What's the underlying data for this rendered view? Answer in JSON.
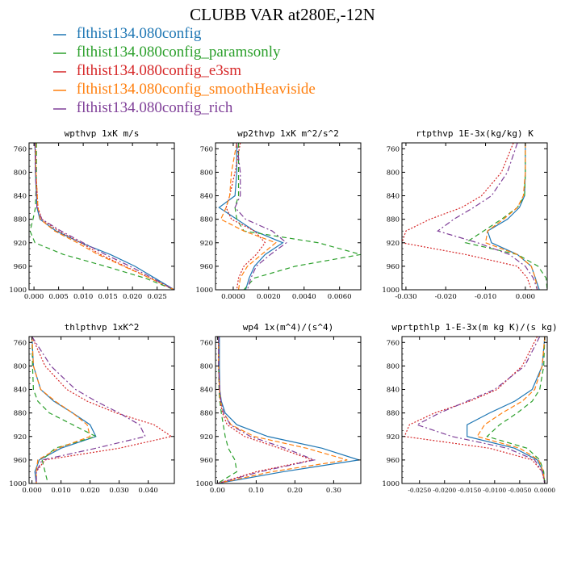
{
  "page": {
    "title": "CLUBB VAR at280E,-12N"
  },
  "legend": {
    "items": [
      {
        "label": "flthist134.080config",
        "color": "#1f77b4",
        "dash": "solid"
      },
      {
        "label": "flthist134.080config_paramsonly",
        "color": "#2ca02c",
        "dash": "6,4"
      },
      {
        "label": "flthist134.080config_e3sm",
        "color": "#d62728",
        "dash": "2,2"
      },
      {
        "label": "flthist134.080config_smoothHeaviside",
        "color": "#ff7f0e",
        "dash": "6,3"
      },
      {
        "label": "flthist134.080config_rich",
        "color": "#7f3f98",
        "dash": "7,3,2,3"
      }
    ]
  },
  "chart_data": [
    {
      "type": "line",
      "title": "wpthvp  1xK m/s",
      "xlim": [
        -0.001,
        0.0285
      ],
      "ylim": [
        750,
        1000
      ],
      "xticks": [
        0,
        0.005,
        0.01,
        0.015,
        0.02,
        0.025
      ],
      "xtick_labels": [
        "0.000",
        "0.005",
        "0.010",
        "0.015",
        "0.020",
        "0.025"
      ],
      "yticks": [
        760,
        800,
        840,
        880,
        920,
        960,
        1000
      ],
      "y": [
        750,
        800,
        860,
        880,
        900,
        920,
        940,
        960,
        980,
        1000
      ],
      "series": [
        {
          "x": [
            0.0002,
            0.0003,
            0.0006,
            0.0012,
            0.0045,
            0.0095,
            0.0155,
            0.0205,
            0.0245,
            0.0285
          ]
        },
        {
          "x": [
            0.0005,
            0.0005,
            0.0003,
            -0.0002,
            -0.0008,
            0.0002,
            0.006,
            0.0145,
            0.0225,
            0.0285
          ]
        },
        {
          "x": [
            0.0003,
            0.0004,
            0.0008,
            0.0016,
            0.005,
            0.0095,
            0.0135,
            0.0185,
            0.0235,
            0.0285
          ]
        },
        {
          "x": [
            0.0003,
            0.0004,
            0.0008,
            0.0013,
            0.0042,
            0.0088,
            0.013,
            0.0182,
            0.0235,
            0.0285
          ]
        },
        {
          "x": [
            0.0002,
            0.0003,
            0.0006,
            0.0016,
            0.0055,
            0.01,
            0.0145,
            0.0195,
            0.024,
            0.0285
          ]
        }
      ]
    },
    {
      "type": "line",
      "title": "wp2thvp  1xK m^2/s^2",
      "xlim": [
        -0.001,
        0.0072
      ],
      "ylim": [
        750,
        1000
      ],
      "xticks": [
        0,
        0.002,
        0.004,
        0.006
      ],
      "xtick_labels": [
        "0.0000",
        "0.0020",
        "0.0040",
        "0.0060"
      ],
      "yticks": [
        760,
        800,
        840,
        880,
        920,
        960,
        1000
      ],
      "y": [
        750,
        800,
        840,
        860,
        880,
        900,
        920,
        940,
        960,
        980,
        1000
      ],
      "series": [
        {
          "x": [
            0.0002,
            0.0002,
            0.0001,
            -0.0008,
            0.0002,
            0.0012,
            0.0028,
            0.0018,
            0.0012,
            0.0009,
            0.0007
          ]
        },
        {
          "x": [
            0.0003,
            0.0003,
            0.0003,
            0.0001,
            0.0002,
            0.0006,
            0.0048,
            0.0072,
            0.0035,
            0.0012,
            0.0006
          ]
        },
        {
          "x": [
            0.0004,
            0.0001,
            -0.0002,
            -0.0004,
            -0.0001,
            0.0012,
            0.0018,
            0.0013,
            0.0006,
            0.0003,
            0.0002
          ]
        },
        {
          "x": [
            0.0002,
            -0.0001,
            -0.0002,
            -0.0004,
            -0.0007,
            0.0006,
            0.0024,
            0.0016,
            0.0008,
            0.0004,
            0.0003
          ]
        },
        {
          "x": [
            0.0002,
            0.0004,
            0.0004,
            0.0001,
            0.0007,
            0.0022,
            0.003,
            0.0021,
            0.0013,
            0.001,
            0.0008
          ]
        }
      ]
    },
    {
      "type": "line",
      "title": "rtpthvp  1E-3x(kg/kg) K",
      "xlim": [
        -0.031,
        0.0055
      ],
      "ylim": [
        750,
        1000
      ],
      "xticks": [
        -0.03,
        -0.02,
        -0.01,
        0
      ],
      "xtick_labels": [
        "-0.030",
        "-0.020",
        "-0.010",
        "0.000"
      ],
      "yticks": [
        760,
        800,
        840,
        880,
        920,
        960,
        1000
      ],
      "y": [
        750,
        800,
        840,
        860,
        880,
        900,
        920,
        940,
        960,
        980,
        1000
      ],
      "series": [
        {
          "x": [
            0.0,
            0.0,
            -0.0002,
            -0.0015,
            -0.0045,
            -0.0095,
            -0.0085,
            -0.002,
            0.0015,
            0.0025,
            0.0035
          ]
        },
        {
          "x": [
            0.0,
            0.0,
            -0.0002,
            -0.002,
            -0.006,
            -0.0105,
            -0.015,
            -0.002,
            0.0032,
            0.0052,
            0.0055
          ]
        },
        {
          "x": [
            -0.003,
            -0.006,
            -0.011,
            -0.016,
            -0.024,
            -0.03,
            -0.031,
            -0.015,
            -0.002,
            0.0005,
            0.0015
          ]
        },
        {
          "x": [
            0.0,
            0.0,
            -0.0005,
            -0.002,
            -0.0055,
            -0.0095,
            -0.01,
            -0.002,
            0.0015,
            0.0025,
            0.003
          ]
        },
        {
          "x": [
            -0.002,
            -0.0045,
            -0.0085,
            -0.013,
            -0.018,
            -0.022,
            -0.012,
            -0.004,
            0.0,
            0.002,
            0.003
          ]
        }
      ]
    },
    {
      "type": "line",
      "title": "thlpthvp  1xK^2",
      "xlim": [
        -0.001,
        0.049
      ],
      "ylim": [
        750,
        1000
      ],
      "xticks": [
        0,
        0.01,
        0.02,
        0.03,
        0.04
      ],
      "xtick_labels": [
        "0.000",
        "0.010",
        "0.020",
        "0.030",
        "0.040"
      ],
      "yticks": [
        760,
        800,
        840,
        880,
        920,
        960,
        1000
      ],
      "y": [
        750,
        800,
        840,
        860,
        880,
        900,
        920,
        940,
        960,
        980,
        1000
      ],
      "series": [
        {
          "x": [
            0.0,
            0.0005,
            0.003,
            0.0075,
            0.014,
            0.02,
            0.022,
            0.01,
            0.0025,
            0.001,
            0.0015
          ]
        },
        {
          "x": [
            0.0,
            0.0002,
            0.0005,
            0.002,
            0.006,
            0.014,
            0.022,
            0.008,
            0.0035,
            0.0045,
            0.0055
          ]
        },
        {
          "x": [
            0.0,
            0.0045,
            0.012,
            0.019,
            0.029,
            0.042,
            0.048,
            0.03,
            0.0045,
            0.0015,
            0.0015
          ]
        },
        {
          "x": [
            0.0,
            0.0005,
            0.003,
            0.008,
            0.014,
            0.019,
            0.02,
            0.009,
            0.002,
            0.0015,
            0.0015
          ]
        },
        {
          "x": [
            0.0,
            0.0065,
            0.015,
            0.022,
            0.03,
            0.037,
            0.039,
            0.022,
            0.0035,
            0.0015,
            0.0015
          ]
        }
      ]
    },
    {
      "type": "line",
      "title": "wp4  1x(m^4)/(s^4)",
      "xlim": [
        -0.005,
        0.37
      ],
      "ylim": [
        750,
        1000
      ],
      "xticks": [
        0,
        0.1,
        0.2,
        0.3
      ],
      "xtick_labels": [
        "0.00",
        "0.10",
        "0.20",
        "0.30"
      ],
      "yticks": [
        760,
        800,
        840,
        880,
        920,
        960,
        1000
      ],
      "y": [
        750,
        800,
        840,
        860,
        880,
        900,
        920,
        940,
        960,
        980,
        1000
      ],
      "series": [
        {
          "x": [
            0.005,
            0.005,
            0.006,
            0.01,
            0.02,
            0.05,
            0.13,
            0.27,
            0.365,
            0.17,
            0.0
          ]
        },
        {
          "x": [
            0.003,
            0.003,
            0.004,
            0.006,
            0.01,
            0.015,
            0.02,
            0.028,
            0.045,
            0.05,
            0.0
          ]
        },
        {
          "x": [
            0.003,
            0.003,
            0.005,
            0.007,
            0.013,
            0.025,
            0.07,
            0.16,
            0.245,
            0.1,
            0.0
          ]
        },
        {
          "x": [
            0.003,
            0.003,
            0.005,
            0.008,
            0.016,
            0.035,
            0.095,
            0.23,
            0.335,
            0.14,
            0.0
          ]
        },
        {
          "x": [
            0.003,
            0.003,
            0.006,
            0.009,
            0.016,
            0.033,
            0.085,
            0.175,
            0.25,
            0.11,
            0.0
          ]
        }
      ]
    },
    {
      "type": "line",
      "title": "wprtpthlp  1-E-3x(m kg K)/(s kg)",
      "xlim": [
        -0.0285,
        0.0005
      ],
      "ylim": [
        750,
        1000
      ],
      "xticks": [
        -0.025,
        -0.02,
        -0.015,
        -0.01,
        -0.005,
        0
      ],
      "xtick_labels": [
        "-0.0250",
        "-0.0200",
        "-0.0150",
        "-0.0100",
        "-0.0050",
        "0.0000"
      ],
      "yticks": [
        760,
        800,
        840,
        880,
        920,
        960,
        1000
      ],
      "y": [
        750,
        800,
        840,
        860,
        880,
        900,
        920,
        940,
        960,
        980,
        1000
      ],
      "series": [
        {
          "x": [
            0.0,
            -0.0005,
            -0.0025,
            -0.006,
            -0.011,
            -0.0155,
            -0.0155,
            -0.006,
            -0.0015,
            -0.0003,
            0.0
          ]
        },
        {
          "x": [
            0.0,
            -0.0002,
            -0.001,
            -0.0025,
            -0.0055,
            -0.009,
            -0.0115,
            -0.0035,
            -0.001,
            -0.0002,
            0.0
          ]
        },
        {
          "x": [
            -0.0015,
            -0.0045,
            -0.0095,
            -0.015,
            -0.022,
            -0.027,
            -0.028,
            -0.011,
            -0.0025,
            -0.0005,
            0.0
          ]
        },
        {
          "x": [
            0.0,
            -0.0005,
            -0.002,
            -0.0045,
            -0.0085,
            -0.012,
            -0.0135,
            -0.005,
            -0.0012,
            -0.0003,
            0.0
          ]
        },
        {
          "x": [
            -0.001,
            -0.004,
            -0.01,
            -0.0155,
            -0.021,
            -0.0255,
            -0.0185,
            -0.0075,
            -0.002,
            -0.0005,
            0.0
          ]
        }
      ]
    }
  ]
}
